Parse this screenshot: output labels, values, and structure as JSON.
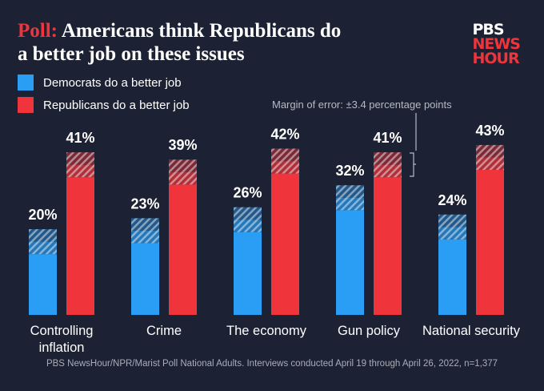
{
  "chart_data": {
    "type": "bar",
    "title_prefix": "Poll:",
    "title": "Americans think Republicans do a better job on these issues",
    "logo": [
      "PBS",
      "NEWS",
      "HOUR"
    ],
    "categories": [
      "Controlling inflation",
      "Crime",
      "The economy",
      "Gun policy",
      "National security"
    ],
    "series": [
      {
        "name": "Democrats do a better job",
        "color": "#2a9df4",
        "values": [
          20,
          23,
          26,
          32,
          24
        ],
        "value_labels": [
          "20%",
          "23%",
          "26%",
          "32%",
          "24%"
        ]
      },
      {
        "name": "Republicans do a better job",
        "color": "#f0343c",
        "values": [
          41,
          39,
          42,
          41,
          43
        ],
        "value_labels": [
          "41%",
          "39%",
          "42%",
          "41%",
          "43%"
        ]
      }
    ],
    "margin_of_error": 3.4,
    "annotation": "Margin of error: ±3.4 percentage points",
    "source": "PBS NewsHour/NPR/Marist Poll National Adults. Interviews conducted April 19 through April 26, 2022,  n=1,377"
  }
}
